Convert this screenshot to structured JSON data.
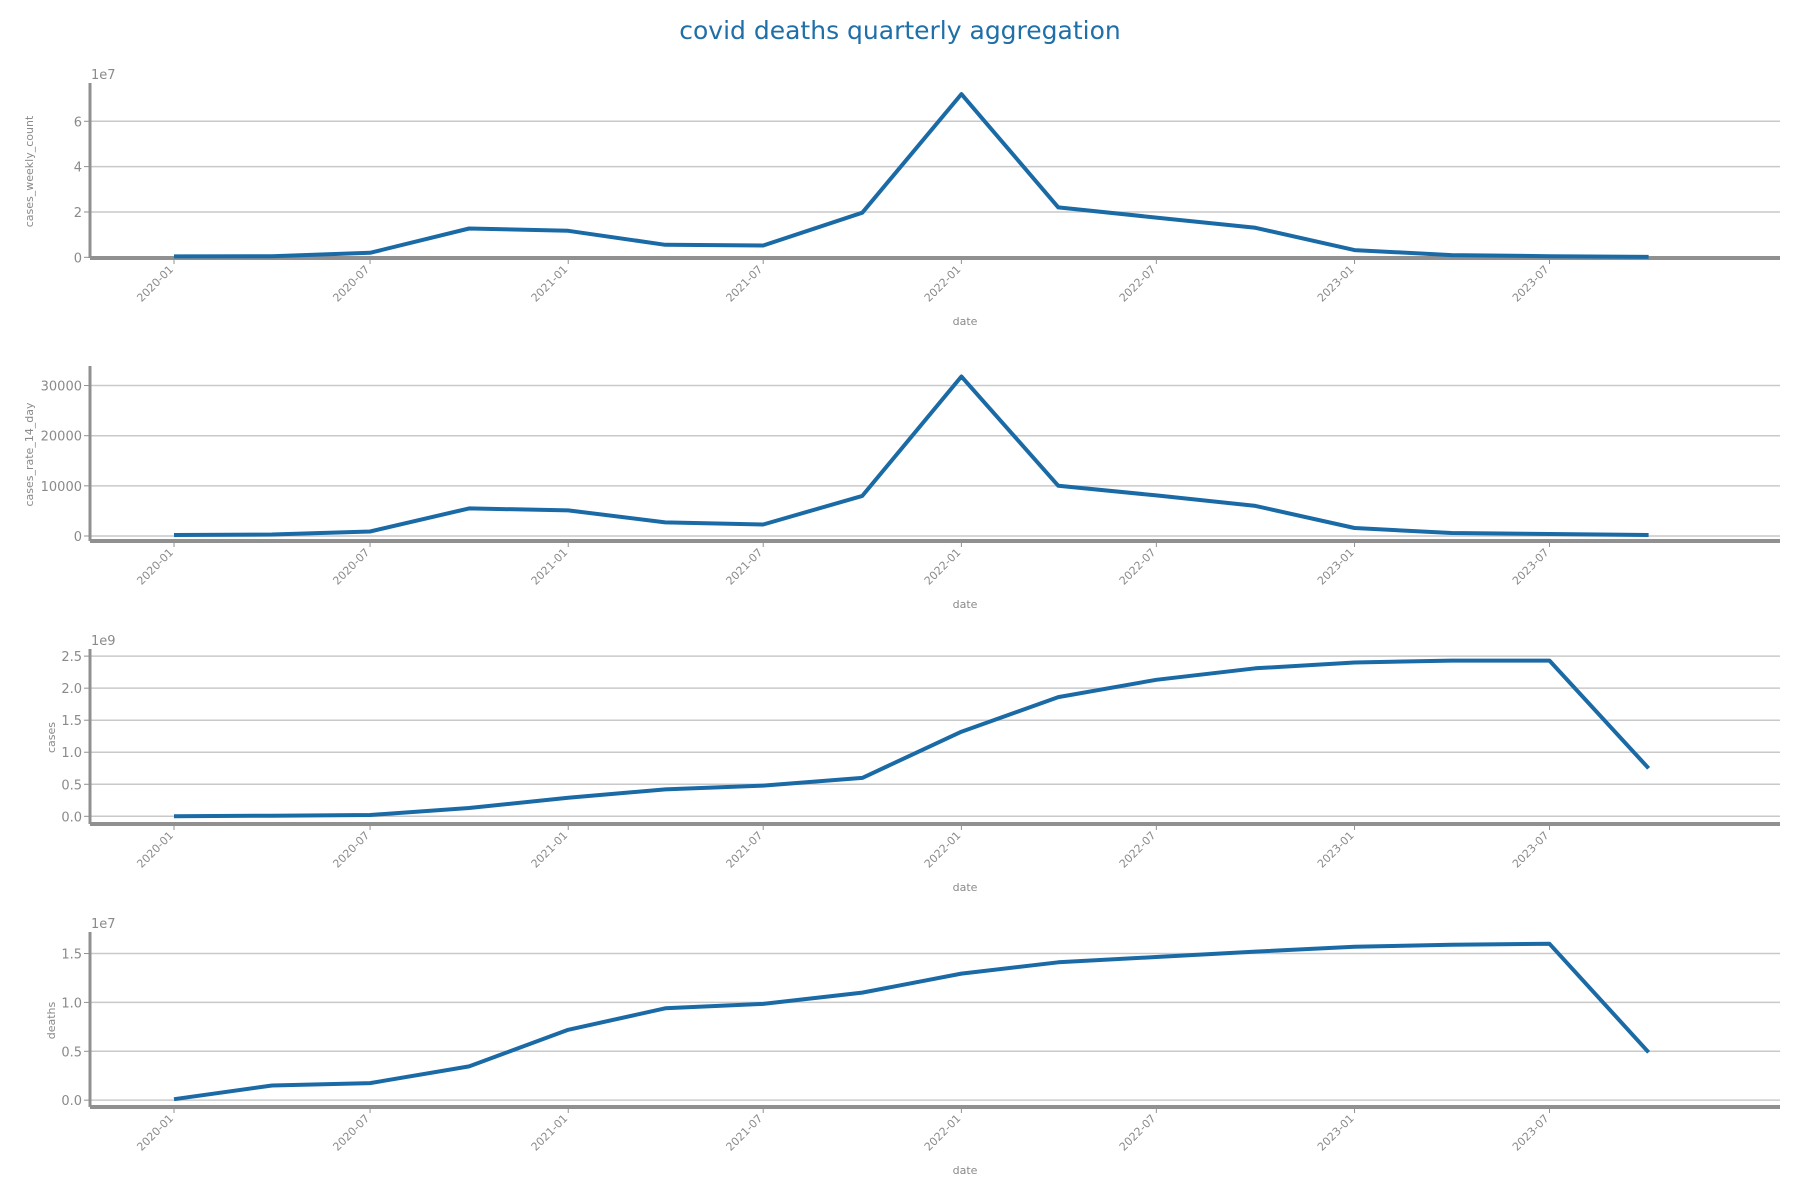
{
  "figure": {
    "title": "covid deaths quarterly aggregation",
    "line_color": "#1a6aa6",
    "axis_color": "#909090",
    "grid_color": "#c9c9c9",
    "text_color": "#8a8a8a",
    "title_color": "#1f6fa8"
  },
  "chart_data": [
    {
      "type": "line",
      "xlabel": "date",
      "ylabel": "cases_weekly_count",
      "x_ticks": [
        "2020-01",
        "2020-07",
        "2021-01",
        "2021-07",
        "2022-01",
        "2022-07",
        "2023-01",
        "2023-07"
      ],
      "y_exponent": "1e7",
      "y_ticks": [
        0,
        2,
        4,
        6
      ],
      "y_scale": 10000000,
      "ylim": [
        -300000,
        76000000
      ],
      "xlim": [
        "2019-10-15",
        "2024-01-31"
      ],
      "grid": true,
      "x": [
        "2020-01-01",
        "2020-04-01",
        "2020-07-01",
        "2020-10-01",
        "2021-01-01",
        "2021-04-01",
        "2021-07-01",
        "2021-10-01",
        "2022-01-01",
        "2022-04-01",
        "2022-07-01",
        "2022-10-01",
        "2023-01-01",
        "2023-04-01",
        "2023-07-01",
        "2023-10-01"
      ],
      "y": [
        400000,
        500000,
        2000000,
        12700000,
        11700000,
        5500000,
        5200000,
        19700000,
        72000000,
        22000000,
        17500000,
        13000000,
        3200000,
        1000000,
        500000,
        200000
      ]
    },
    {
      "type": "line",
      "xlabel": "date",
      "ylabel": "cases_rate_14_day",
      "x_ticks": [
        "2020-01",
        "2020-07",
        "2021-01",
        "2021-07",
        "2022-01",
        "2022-07",
        "2023-01",
        "2023-07"
      ],
      "y_exponent": "",
      "y_ticks": [
        0,
        10000,
        20000,
        30000
      ],
      "y_scale": 1,
      "ylim": [
        -1000,
        33500
      ],
      "xlim": [
        "2019-10-15",
        "2024-01-31"
      ],
      "grid": true,
      "x": [
        "2020-01-01",
        "2020-04-01",
        "2020-07-01",
        "2020-10-01",
        "2021-01-01",
        "2021-04-01",
        "2021-07-01",
        "2021-10-01",
        "2022-01-01",
        "2022-04-01",
        "2022-07-01",
        "2022-10-01",
        "2023-01-01",
        "2023-04-01",
        "2023-07-01",
        "2023-10-01"
      ],
      "y": [
        200,
        300,
        900,
        5500,
        5100,
        2700,
        2300,
        8000,
        31800,
        10000,
        8100,
        6000,
        1600,
        600,
        400,
        200
      ]
    },
    {
      "type": "line",
      "xlabel": "date",
      "ylabel": "cases",
      "x_ticks": [
        "2020-01",
        "2020-07",
        "2021-01",
        "2021-07",
        "2022-01",
        "2022-07",
        "2023-01",
        "2023-07"
      ],
      "y_exponent": "1e9",
      "y_ticks": [
        0.0,
        0.5,
        1.0,
        1.5,
        2.0,
        2.5
      ],
      "y_scale": 1000000000,
      "ylim": [
        -120000000,
        2580000000
      ],
      "xlim": [
        "2019-10-15",
        "2024-01-31"
      ],
      "grid": true,
      "x": [
        "2020-01-01",
        "2020-04-01",
        "2020-07-01",
        "2020-10-01",
        "2021-01-01",
        "2021-04-01",
        "2021-07-01",
        "2021-10-01",
        "2022-01-01",
        "2022-04-01",
        "2022-07-01",
        "2022-10-01",
        "2023-01-01",
        "2023-04-01",
        "2023-07-01",
        "2023-10-01"
      ],
      "y": [
        0,
        10000000,
        20000000,
        130000000,
        290000000,
        420000000,
        480000000,
        600000000,
        1320000000,
        1860000000,
        2130000000,
        2310000000,
        2400000000,
        2430000000,
        2430000000,
        750000000
      ]
    },
    {
      "type": "line",
      "xlabel": "date",
      "ylabel": "deaths",
      "x_ticks": [
        "2020-01",
        "2020-07",
        "2021-01",
        "2021-07",
        "2022-01",
        "2022-07",
        "2023-01",
        "2023-07"
      ],
      "y_exponent": "1e7",
      "y_ticks": [
        0.0,
        0.5,
        1.0,
        1.5
      ],
      "y_scale": 10000000,
      "ylim": [
        -700000,
        17000000
      ],
      "xlim": [
        "2019-10-15",
        "2024-01-31"
      ],
      "grid": true,
      "x": [
        "2020-01-01",
        "2020-04-01",
        "2020-07-01",
        "2020-10-01",
        "2021-01-01",
        "2021-04-01",
        "2021-07-01",
        "2021-10-01",
        "2022-01-01",
        "2022-04-01",
        "2022-07-01",
        "2022-10-01",
        "2023-01-01",
        "2023-04-01",
        "2023-07-01",
        "2023-10-01"
      ],
      "y": [
        100000,
        1500000,
        1750000,
        3450000,
        7200000,
        9400000,
        9850000,
        11000000,
        12950000,
        14100000,
        14650000,
        15200000,
        15700000,
        15900000,
        16000000,
        4900000
      ]
    }
  ]
}
